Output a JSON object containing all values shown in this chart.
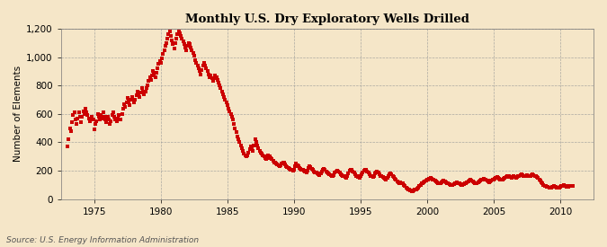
{
  "title": "Monthly U.S. Dry Exploratory Wells Drilled",
  "ylabel": "Number of Elements",
  "source": "Source: U.S. Energy Information Administration",
  "background_color": "#F5E6C8",
  "plot_bg_color": "#F5E6C8",
  "dot_color": "#CC0000",
  "ylim": [
    0,
    1200
  ],
  "yticks": [
    0,
    200,
    400,
    600,
    800,
    1000,
    1200
  ],
  "ytick_labels": [
    "0",
    "200",
    "400",
    "600",
    "800",
    "1,000",
    "1,200"
  ],
  "xticks": [
    1975,
    1980,
    1985,
    1990,
    1995,
    2000,
    2005,
    2010
  ],
  "xlim_start": 1972.5,
  "xlim_end": 2012.5,
  "data": [
    [
      1973.0,
      370
    ],
    [
      1973.08,
      420
    ],
    [
      1973.17,
      500
    ],
    [
      1973.25,
      480
    ],
    [
      1973.33,
      540
    ],
    [
      1973.42,
      590
    ],
    [
      1973.5,
      610
    ],
    [
      1973.58,
      560
    ],
    [
      1973.67,
      530
    ],
    [
      1973.75,
      570
    ],
    [
      1973.83,
      610
    ],
    [
      1973.92,
      580
    ],
    [
      1974.0,
      540
    ],
    [
      1974.08,
      580
    ],
    [
      1974.17,
      620
    ],
    [
      1974.25,
      600
    ],
    [
      1974.33,
      640
    ],
    [
      1974.42,
      610
    ],
    [
      1974.5,
      590
    ],
    [
      1974.58,
      570
    ],
    [
      1974.67,
      550
    ],
    [
      1974.75,
      560
    ],
    [
      1974.83,
      580
    ],
    [
      1974.92,
      560
    ],
    [
      1975.0,
      490
    ],
    [
      1975.08,
      530
    ],
    [
      1975.17,
      550
    ],
    [
      1975.25,
      600
    ],
    [
      1975.33,
      580
    ],
    [
      1975.42,
      560
    ],
    [
      1975.5,
      590
    ],
    [
      1975.58,
      570
    ],
    [
      1975.67,
      610
    ],
    [
      1975.75,
      580
    ],
    [
      1975.83,
      560
    ],
    [
      1975.92,
      540
    ],
    [
      1976.0,
      580
    ],
    [
      1976.08,
      560
    ],
    [
      1976.17,
      530
    ],
    [
      1976.25,
      550
    ],
    [
      1976.33,
      590
    ],
    [
      1976.42,
      610
    ],
    [
      1976.5,
      580
    ],
    [
      1976.58,
      560
    ],
    [
      1976.67,
      550
    ],
    [
      1976.75,
      570
    ],
    [
      1976.83,
      590
    ],
    [
      1976.92,
      560
    ],
    [
      1977.0,
      560
    ],
    [
      1977.08,
      600
    ],
    [
      1977.17,
      640
    ],
    [
      1977.25,
      670
    ],
    [
      1977.33,
      650
    ],
    [
      1977.42,
      680
    ],
    [
      1977.5,
      710
    ],
    [
      1977.58,
      690
    ],
    [
      1977.67,
      660
    ],
    [
      1977.75,
      700
    ],
    [
      1977.83,
      720
    ],
    [
      1977.92,
      700
    ],
    [
      1978.0,
      680
    ],
    [
      1978.08,
      700
    ],
    [
      1978.17,
      730
    ],
    [
      1978.25,
      760
    ],
    [
      1978.33,
      740
    ],
    [
      1978.42,
      720
    ],
    [
      1978.5,
      750
    ],
    [
      1978.58,
      780
    ],
    [
      1978.67,
      760
    ],
    [
      1978.75,
      740
    ],
    [
      1978.83,
      760
    ],
    [
      1978.92,
      780
    ],
    [
      1979.0,
      800
    ],
    [
      1979.08,
      830
    ],
    [
      1979.17,
      860
    ],
    [
      1979.25,
      840
    ],
    [
      1979.33,
      870
    ],
    [
      1979.42,
      900
    ],
    [
      1979.5,
      880
    ],
    [
      1979.58,
      860
    ],
    [
      1979.67,
      890
    ],
    [
      1979.75,
      920
    ],
    [
      1979.83,
      950
    ],
    [
      1979.92,
      970
    ],
    [
      1980.0,
      960
    ],
    [
      1980.08,
      990
    ],
    [
      1980.17,
      1020
    ],
    [
      1980.25,
      1050
    ],
    [
      1980.33,
      1080
    ],
    [
      1980.42,
      1100
    ],
    [
      1980.5,
      1130
    ],
    [
      1980.58,
      1160
    ],
    [
      1980.67,
      1180
    ],
    [
      1980.75,
      1150
    ],
    [
      1980.83,
      1120
    ],
    [
      1980.92,
      1090
    ],
    [
      1981.0,
      1060
    ],
    [
      1981.08,
      1100
    ],
    [
      1981.17,
      1130
    ],
    [
      1981.25,
      1160
    ],
    [
      1981.33,
      1180
    ],
    [
      1981.42,
      1170
    ],
    [
      1981.5,
      1150
    ],
    [
      1981.58,
      1130
    ],
    [
      1981.67,
      1110
    ],
    [
      1981.75,
      1090
    ],
    [
      1981.83,
      1070
    ],
    [
      1981.92,
      1050
    ],
    [
      1982.0,
      1080
    ],
    [
      1982.08,
      1100
    ],
    [
      1982.17,
      1090
    ],
    [
      1982.25,
      1070
    ],
    [
      1982.33,
      1050
    ],
    [
      1982.42,
      1030
    ],
    [
      1982.5,
      1010
    ],
    [
      1982.58,
      980
    ],
    [
      1982.67,
      960
    ],
    [
      1982.75,
      940
    ],
    [
      1982.83,
      920
    ],
    [
      1982.92,
      900
    ],
    [
      1983.0,
      880
    ],
    [
      1983.08,
      910
    ],
    [
      1983.17,
      940
    ],
    [
      1983.25,
      960
    ],
    [
      1983.33,
      940
    ],
    [
      1983.42,
      920
    ],
    [
      1983.5,
      900
    ],
    [
      1983.58,
      880
    ],
    [
      1983.67,
      860
    ],
    [
      1983.75,
      870
    ],
    [
      1983.83,
      850
    ],
    [
      1983.92,
      830
    ],
    [
      1984.0,
      850
    ],
    [
      1984.08,
      870
    ],
    [
      1984.17,
      860
    ],
    [
      1984.25,
      840
    ],
    [
      1984.33,
      820
    ],
    [
      1984.42,
      800
    ],
    [
      1984.5,
      780
    ],
    [
      1984.58,
      760
    ],
    [
      1984.67,
      740
    ],
    [
      1984.75,
      720
    ],
    [
      1984.83,
      700
    ],
    [
      1984.92,
      680
    ],
    [
      1985.0,
      660
    ],
    [
      1985.08,
      640
    ],
    [
      1985.17,
      620
    ],
    [
      1985.25,
      600
    ],
    [
      1985.33,
      580
    ],
    [
      1985.42,
      560
    ],
    [
      1985.5,
      530
    ],
    [
      1985.58,
      500
    ],
    [
      1985.67,
      470
    ],
    [
      1985.75,
      440
    ],
    [
      1985.83,
      420
    ],
    [
      1985.92,
      400
    ],
    [
      1986.0,
      380
    ],
    [
      1986.08,
      360
    ],
    [
      1986.17,
      340
    ],
    [
      1986.25,
      320
    ],
    [
      1986.33,
      310
    ],
    [
      1986.42,
      300
    ],
    [
      1986.5,
      310
    ],
    [
      1986.58,
      330
    ],
    [
      1986.67,
      350
    ],
    [
      1986.75,
      370
    ],
    [
      1986.83,
      360
    ],
    [
      1986.92,
      340
    ],
    [
      1987.0,
      380
    ],
    [
      1987.08,
      420
    ],
    [
      1987.17,
      400
    ],
    [
      1987.25,
      380
    ],
    [
      1987.33,
      360
    ],
    [
      1987.42,
      340
    ],
    [
      1987.5,
      330
    ],
    [
      1987.58,
      320
    ],
    [
      1987.67,
      310
    ],
    [
      1987.75,
      300
    ],
    [
      1987.83,
      290
    ],
    [
      1987.92,
      280
    ],
    [
      1988.0,
      290
    ],
    [
      1988.08,
      310
    ],
    [
      1988.17,
      300
    ],
    [
      1988.25,
      290
    ],
    [
      1988.33,
      280
    ],
    [
      1988.42,
      270
    ],
    [
      1988.5,
      260
    ],
    [
      1988.58,
      255
    ],
    [
      1988.67,
      250
    ],
    [
      1988.75,
      245
    ],
    [
      1988.83,
      240
    ],
    [
      1988.92,
      235
    ],
    [
      1989.0,
      240
    ],
    [
      1989.08,
      250
    ],
    [
      1989.17,
      260
    ],
    [
      1989.25,
      255
    ],
    [
      1989.33,
      245
    ],
    [
      1989.42,
      235
    ],
    [
      1989.5,
      225
    ],
    [
      1989.58,
      220
    ],
    [
      1989.67,
      215
    ],
    [
      1989.75,
      210
    ],
    [
      1989.83,
      205
    ],
    [
      1989.92,
      200
    ],
    [
      1990.0,
      210
    ],
    [
      1990.08,
      230
    ],
    [
      1990.17,
      250
    ],
    [
      1990.25,
      240
    ],
    [
      1990.33,
      230
    ],
    [
      1990.42,
      220
    ],
    [
      1990.5,
      215
    ],
    [
      1990.58,
      210
    ],
    [
      1990.67,
      205
    ],
    [
      1990.75,
      200
    ],
    [
      1990.83,
      195
    ],
    [
      1990.92,
      190
    ],
    [
      1991.0,
      200
    ],
    [
      1991.08,
      220
    ],
    [
      1991.17,
      230
    ],
    [
      1991.25,
      225
    ],
    [
      1991.33,
      215
    ],
    [
      1991.42,
      205
    ],
    [
      1991.5,
      195
    ],
    [
      1991.58,
      190
    ],
    [
      1991.67,
      185
    ],
    [
      1991.75,
      180
    ],
    [
      1991.83,
      175
    ],
    [
      1991.92,
      170
    ],
    [
      1992.0,
      180
    ],
    [
      1992.08,
      195
    ],
    [
      1992.17,
      210
    ],
    [
      1992.25,
      215
    ],
    [
      1992.33,
      205
    ],
    [
      1992.42,
      195
    ],
    [
      1992.5,
      185
    ],
    [
      1992.58,
      180
    ],
    [
      1992.67,
      175
    ],
    [
      1992.75,
      170
    ],
    [
      1992.83,
      165
    ],
    [
      1992.92,
      160
    ],
    [
      1993.0,
      170
    ],
    [
      1993.08,
      185
    ],
    [
      1993.17,
      195
    ],
    [
      1993.25,
      200
    ],
    [
      1993.33,
      195
    ],
    [
      1993.42,
      185
    ],
    [
      1993.5,
      175
    ],
    [
      1993.58,
      170
    ],
    [
      1993.67,
      165
    ],
    [
      1993.75,
      160
    ],
    [
      1993.83,
      155
    ],
    [
      1993.92,
      150
    ],
    [
      1994.0,
      160
    ],
    [
      1994.08,
      180
    ],
    [
      1994.17,
      200
    ],
    [
      1994.25,
      210
    ],
    [
      1994.33,
      205
    ],
    [
      1994.42,
      195
    ],
    [
      1994.5,
      185
    ],
    [
      1994.58,
      175
    ],
    [
      1994.67,
      165
    ],
    [
      1994.75,
      160
    ],
    [
      1994.83,
      155
    ],
    [
      1994.92,
      150
    ],
    [
      1995.0,
      160
    ],
    [
      1995.08,
      175
    ],
    [
      1995.17,
      190
    ],
    [
      1995.25,
      200
    ],
    [
      1995.33,
      210
    ],
    [
      1995.42,
      205
    ],
    [
      1995.5,
      195
    ],
    [
      1995.58,
      185
    ],
    [
      1995.67,
      175
    ],
    [
      1995.75,
      165
    ],
    [
      1995.83,
      160
    ],
    [
      1995.92,
      155
    ],
    [
      1996.0,
      165
    ],
    [
      1996.08,
      180
    ],
    [
      1996.17,
      190
    ],
    [
      1996.25,
      195
    ],
    [
      1996.33,
      185
    ],
    [
      1996.42,
      175
    ],
    [
      1996.5,
      165
    ],
    [
      1996.58,
      160
    ],
    [
      1996.67,
      155
    ],
    [
      1996.75,
      150
    ],
    [
      1996.83,
      145
    ],
    [
      1996.92,
      140
    ],
    [
      1997.0,
      150
    ],
    [
      1997.08,
      165
    ],
    [
      1997.17,
      175
    ],
    [
      1997.25,
      180
    ],
    [
      1997.33,
      175
    ],
    [
      1997.42,
      165
    ],
    [
      1997.5,
      155
    ],
    [
      1997.58,
      145
    ],
    [
      1997.67,
      135
    ],
    [
      1997.75,
      125
    ],
    [
      1997.83,
      120
    ],
    [
      1997.92,
      115
    ],
    [
      1998.0,
      120
    ],
    [
      1998.08,
      115
    ],
    [
      1998.17,
      110
    ],
    [
      1998.25,
      100
    ],
    [
      1998.33,
      90
    ],
    [
      1998.42,
      80
    ],
    [
      1998.5,
      75
    ],
    [
      1998.58,
      70
    ],
    [
      1998.67,
      65
    ],
    [
      1998.75,
      60
    ],
    [
      1998.83,
      58
    ],
    [
      1998.92,
      55
    ],
    [
      1999.0,
      60
    ],
    [
      1999.08,
      65
    ],
    [
      1999.17,
      70
    ],
    [
      1999.25,
      75
    ],
    [
      1999.33,
      80
    ],
    [
      1999.42,
      90
    ],
    [
      1999.5,
      100
    ],
    [
      1999.58,
      110
    ],
    [
      1999.67,
      115
    ],
    [
      1999.75,
      120
    ],
    [
      1999.83,
      125
    ],
    [
      1999.92,
      130
    ],
    [
      2000.0,
      135
    ],
    [
      2000.08,
      140
    ],
    [
      2000.17,
      145
    ],
    [
      2000.25,
      150
    ],
    [
      2000.33,
      145
    ],
    [
      2000.42,
      140
    ],
    [
      2000.5,
      135
    ],
    [
      2000.58,
      130
    ],
    [
      2000.67,
      125
    ],
    [
      2000.75,
      120
    ],
    [
      2000.83,
      115
    ],
    [
      2000.92,
      110
    ],
    [
      2001.0,
      115
    ],
    [
      2001.08,
      120
    ],
    [
      2001.17,
      125
    ],
    [
      2001.25,
      130
    ],
    [
      2001.33,
      125
    ],
    [
      2001.42,
      120
    ],
    [
      2001.5,
      115
    ],
    [
      2001.58,
      110
    ],
    [
      2001.67,
      105
    ],
    [
      2001.75,
      100
    ],
    [
      2001.83,
      100
    ],
    [
      2001.92,
      100
    ],
    [
      2002.0,
      105
    ],
    [
      2002.08,
      110
    ],
    [
      2002.17,
      115
    ],
    [
      2002.25,
      120
    ],
    [
      2002.33,
      115
    ],
    [
      2002.42,
      110
    ],
    [
      2002.5,
      105
    ],
    [
      2002.58,
      100
    ],
    [
      2002.67,
      100
    ],
    [
      2002.75,
      105
    ],
    [
      2002.83,
      110
    ],
    [
      2002.92,
      115
    ],
    [
      2003.0,
      120
    ],
    [
      2003.08,
      125
    ],
    [
      2003.17,
      130
    ],
    [
      2003.25,
      135
    ],
    [
      2003.33,
      130
    ],
    [
      2003.42,
      125
    ],
    [
      2003.5,
      120
    ],
    [
      2003.58,
      115
    ],
    [
      2003.67,
      110
    ],
    [
      2003.75,
      115
    ],
    [
      2003.83,
      120
    ],
    [
      2003.92,
      125
    ],
    [
      2004.0,
      130
    ],
    [
      2004.08,
      135
    ],
    [
      2004.17,
      140
    ],
    [
      2004.25,
      145
    ],
    [
      2004.33,
      140
    ],
    [
      2004.42,
      135
    ],
    [
      2004.5,
      130
    ],
    [
      2004.58,
      125
    ],
    [
      2004.67,
      120
    ],
    [
      2004.75,
      125
    ],
    [
      2004.83,
      130
    ],
    [
      2004.92,
      135
    ],
    [
      2005.0,
      140
    ],
    [
      2005.08,
      145
    ],
    [
      2005.17,
      150
    ],
    [
      2005.25,
      155
    ],
    [
      2005.33,
      150
    ],
    [
      2005.42,
      145
    ],
    [
      2005.5,
      140
    ],
    [
      2005.58,
      135
    ],
    [
      2005.67,
      140
    ],
    [
      2005.75,
      145
    ],
    [
      2005.83,
      150
    ],
    [
      2005.92,
      155
    ],
    [
      2006.0,
      160
    ],
    [
      2006.08,
      165
    ],
    [
      2006.17,
      160
    ],
    [
      2006.25,
      155
    ],
    [
      2006.33,
      150
    ],
    [
      2006.42,
      155
    ],
    [
      2006.5,
      160
    ],
    [
      2006.58,
      155
    ],
    [
      2006.67,
      150
    ],
    [
      2006.75,
      155
    ],
    [
      2006.83,
      160
    ],
    [
      2006.92,
      165
    ],
    [
      2007.0,
      170
    ],
    [
      2007.08,
      175
    ],
    [
      2007.17,
      170
    ],
    [
      2007.25,
      165
    ],
    [
      2007.33,
      160
    ],
    [
      2007.42,
      165
    ],
    [
      2007.5,
      170
    ],
    [
      2007.58,
      165
    ],
    [
      2007.67,
      160
    ],
    [
      2007.75,
      165
    ],
    [
      2007.83,
      170
    ],
    [
      2007.92,
      175
    ],
    [
      2008.0,
      170
    ],
    [
      2008.08,
      165
    ],
    [
      2008.17,
      160
    ],
    [
      2008.25,
      155
    ],
    [
      2008.33,
      150
    ],
    [
      2008.42,
      140
    ],
    [
      2008.5,
      130
    ],
    [
      2008.58,
      120
    ],
    [
      2008.67,
      110
    ],
    [
      2008.75,
      100
    ],
    [
      2008.83,
      95
    ],
    [
      2008.92,
      90
    ],
    [
      2009.0,
      88
    ],
    [
      2009.08,
      85
    ],
    [
      2009.17,
      82
    ],
    [
      2009.25,
      80
    ],
    [
      2009.33,
      82
    ],
    [
      2009.42,
      85
    ],
    [
      2009.5,
      90
    ],
    [
      2009.58,
      88
    ],
    [
      2009.67,
      85
    ],
    [
      2009.75,
      82
    ],
    [
      2009.83,
      80
    ],
    [
      2009.92,
      82
    ],
    [
      2010.0,
      85
    ],
    [
      2010.08,
      90
    ],
    [
      2010.17,
      95
    ],
    [
      2010.25,
      100
    ],
    [
      2010.33,
      95
    ],
    [
      2010.42,
      90
    ],
    [
      2010.5,
      88
    ],
    [
      2010.58,
      85
    ],
    [
      2010.67,
      90
    ],
    [
      2010.75,
      95
    ],
    [
      2010.83,
      92
    ],
    [
      2010.92,
      90
    ]
  ]
}
